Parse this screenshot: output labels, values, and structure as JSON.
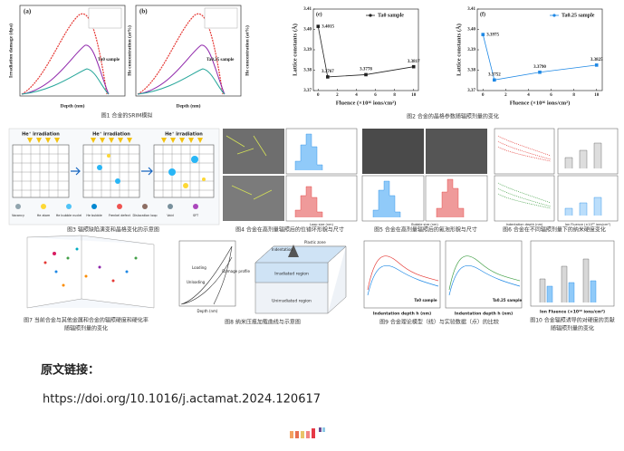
{
  "fig1": {
    "caption": "图1 合金的SRIM模拟",
    "panels": [
      {
        "tag": "(a)",
        "sample": "Ta0 sample"
      },
      {
        "tag": "(b)",
        "sample": "Ta0.25 sample"
      }
    ],
    "ylabel": "Irradiation damage (dpa)",
    "y2label": "He concentration (at%)",
    "xlabel": "Depth (nm)"
  },
  "fig2": {
    "caption": "图2 合金的晶格参数随辐照剂量的变化",
    "ylabel": "Lattice constants (Å)",
    "xlabel": "Fluence (×10¹⁶ ions/cm²)",
    "x": [
      0,
      1,
      5,
      10
    ],
    "xlim": [
      -0.5,
      10.5
    ],
    "xticks": [
      0,
      2,
      4,
      6,
      8,
      10
    ],
    "ylim": [
      3.37,
      3.41
    ],
    "yticks": [
      3.37,
      3.38,
      3.39,
      {
        "value": 3.4,
        "label": "3.40"
      },
      3.41
    ],
    "panels": [
      {
        "tag": "(e)",
        "name": "Ta0 sample",
        "color": "#222222",
        "values": [
          3.4015,
          3.3767,
          3.3778,
          3.3817
        ]
      },
      {
        "tag": "(f)",
        "name": "Ta0.25 sample",
        "color": "#1e88e5",
        "values": [
          3.3975,
          3.3752,
          3.379,
          3.3825
        ],
        "value_labels": [
          "3.3975",
          "3.3752",
          "3.3790",
          "3.3825"
        ]
      }
    ]
  },
  "fig3": {
    "caption": "图3 辐照缺陷演变和晶格变化的示意图",
    "beam": "He⁺ irradiation",
    "legend": [
      "Vacancy",
      "He atom",
      "He bubble nuclei",
      "He bubble",
      "Frenkel defect",
      "Dislocation loop",
      "Void",
      "SFT"
    ]
  },
  "fig4": {
    "caption": "图4 合金在高剂量辐照后的位错环形貌与尺寸",
    "xlabel": "Loop size (nm)"
  },
  "fig5": {
    "caption": "图5 合金在高剂量辐照后的氦泡形貌与尺寸",
    "xlabel": "Bubble size (nm)"
  },
  "fig6": {
    "caption": "图6 合金在不同辐照剂量下的纳米硬度变化",
    "xlabel": "Indentation depth (nm)",
    "x2label": "Ion Fluence (×10¹⁶ ions/cm²)"
  },
  "fig7": {
    "caption": [
      "图7 当前合金与其他金属和合金的辐照硬度和硬化率",
      "随辐照剂量的变化"
    ]
  },
  "fig8": {
    "caption": "图8 纳米压痕加载曲线与示意图",
    "loading": "Loading",
    "unloading": "Unloading",
    "xlabel": "Depth (nm)",
    "indentation": "Indentation",
    "plastic": "Plastic zone",
    "damage": "Damage profile",
    "irradiated": "Irradiated region",
    "unirradiated": "Unirradiated region"
  },
  "fig9": {
    "caption": "图9 合金理论模型（线）与实验数据（点）的比较",
    "xlabel": "Indentation depth h (nm)",
    "samples": [
      "Ta0 sample",
      "Ta0.25 sample"
    ]
  },
  "fig10": {
    "caption": [
      "图10 合金辐照诱导的对硬度的贡献",
      "随辐照剂量的变化"
    ],
    "xlabel": "Ion Fluence (×10¹⁶ ions/cm²)"
  },
  "link_label": "原文链接：",
  "url": "https://doi.org/10.1016/j.actamat.2024.120617"
}
